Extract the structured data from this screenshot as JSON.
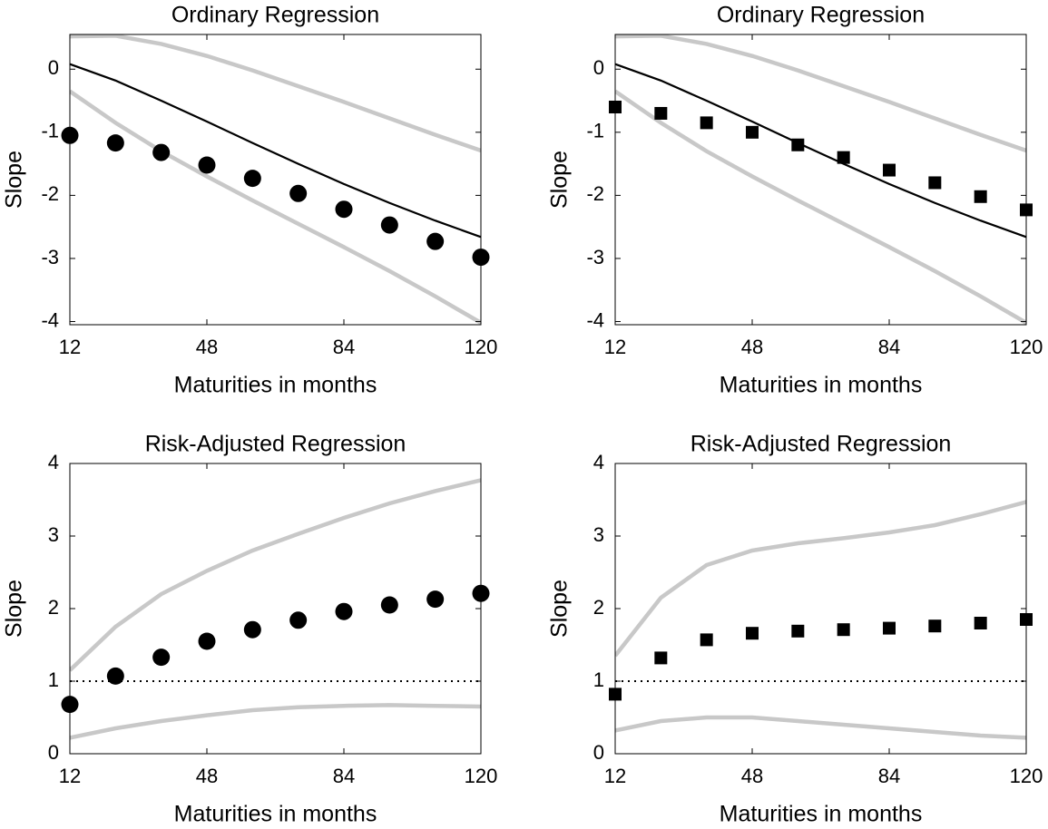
{
  "chart_data": [
    {
      "type": "line",
      "title": "Ordinary Regression",
      "xlabel": "Maturities in months",
      "ylabel": "Slope",
      "x": [
        12,
        24,
        36,
        48,
        60,
        72,
        84,
        96,
        108,
        120
      ],
      "xlim": [
        12,
        120
      ],
      "xticks": [
        12,
        48,
        84,
        120
      ],
      "ylim": [
        -4.05,
        0.55
      ],
      "yticks": [
        0,
        -1,
        -2,
        -3,
        -4
      ],
      "series": [
        {
          "color": "#c8c8c8",
          "style": "line",
          "values": [
            0.52,
            0.53,
            0.4,
            0.21,
            -0.02,
            -0.27,
            -0.52,
            -0.78,
            -1.04,
            -1.29
          ]
        },
        {
          "color": "#c8c8c8",
          "style": "line",
          "values": [
            -0.35,
            -0.85,
            -1.3,
            -1.7,
            -2.08,
            -2.45,
            -2.82,
            -3.2,
            -3.6,
            -4.02
          ]
        },
        {
          "color": "#000000",
          "style": "line",
          "values": [
            0.08,
            -0.18,
            -0.5,
            -0.83,
            -1.17,
            -1.5,
            -1.82,
            -2.12,
            -2.4,
            -2.66
          ]
        },
        {
          "color": "#000000",
          "style": "circle",
          "values": [
            -1.05,
            -1.17,
            -1.32,
            -1.52,
            -1.73,
            -1.97,
            -2.22,
            -2.47,
            -2.73,
            -2.98
          ]
        }
      ]
    },
    {
      "type": "line",
      "title": "Ordinary Regression",
      "xlabel": "Maturities in months",
      "ylabel": "Slope",
      "x": [
        12,
        24,
        36,
        48,
        60,
        72,
        84,
        96,
        108,
        120
      ],
      "xlim": [
        12,
        120
      ],
      "xticks": [
        12,
        48,
        84,
        120
      ],
      "ylim": [
        -4.05,
        0.55
      ],
      "yticks": [
        0,
        -1,
        -2,
        -3,
        -4
      ],
      "series": [
        {
          "color": "#c8c8c8",
          "style": "line",
          "values": [
            0.52,
            0.53,
            0.4,
            0.21,
            -0.02,
            -0.27,
            -0.52,
            -0.78,
            -1.04,
            -1.29
          ]
        },
        {
          "color": "#c8c8c8",
          "style": "line",
          "values": [
            -0.35,
            -0.85,
            -1.3,
            -1.7,
            -2.08,
            -2.45,
            -2.82,
            -3.2,
            -3.6,
            -4.02
          ]
        },
        {
          "color": "#000000",
          "style": "line",
          "values": [
            0.08,
            -0.18,
            -0.5,
            -0.83,
            -1.17,
            -1.5,
            -1.82,
            -2.12,
            -2.4,
            -2.66
          ]
        },
        {
          "color": "#000000",
          "style": "square",
          "values": [
            -0.6,
            -0.7,
            -0.85,
            -1.0,
            -1.2,
            -1.4,
            -1.6,
            -1.8,
            -2.02,
            -2.23
          ]
        }
      ]
    },
    {
      "type": "line",
      "title": "Risk-Adjusted Regression",
      "xlabel": "Maturities in months",
      "ylabel": "Slope",
      "x": [
        12,
        24,
        36,
        48,
        60,
        72,
        84,
        96,
        108,
        120
      ],
      "xlim": [
        12,
        120
      ],
      "xticks": [
        12,
        48,
        84,
        120
      ],
      "ylim": [
        0,
        4
      ],
      "yticks": [
        0,
        1,
        2,
        3,
        4
      ],
      "hline": 1,
      "hline_style": "dotted",
      "series": [
        {
          "color": "#c8c8c8",
          "style": "line",
          "values": [
            1.15,
            1.75,
            2.2,
            2.52,
            2.8,
            3.03,
            3.25,
            3.45,
            3.62,
            3.77
          ]
        },
        {
          "color": "#c8c8c8",
          "style": "line",
          "values": [
            0.22,
            0.35,
            0.45,
            0.53,
            0.6,
            0.64,
            0.66,
            0.67,
            0.66,
            0.65
          ]
        },
        {
          "color": "#000000",
          "style": "circle",
          "values": [
            0.68,
            1.07,
            1.33,
            1.55,
            1.71,
            1.84,
            1.96,
            2.05,
            2.13,
            2.21
          ]
        }
      ]
    },
    {
      "type": "line",
      "title": "Risk-Adjusted Regression",
      "xlabel": "Maturities in months",
      "ylabel": "Slope",
      "x": [
        12,
        24,
        36,
        48,
        60,
        72,
        84,
        96,
        108,
        120
      ],
      "xlim": [
        12,
        120
      ],
      "xticks": [
        12,
        48,
        84,
        120
      ],
      "ylim": [
        0,
        4
      ],
      "yticks": [
        0,
        1,
        2,
        3,
        4
      ],
      "hline": 1,
      "hline_style": "dotted",
      "series": [
        {
          "color": "#c8c8c8",
          "style": "line",
          "values": [
            1.35,
            2.15,
            2.6,
            2.8,
            2.9,
            2.97,
            3.05,
            3.15,
            3.3,
            3.47
          ]
        },
        {
          "color": "#c8c8c8",
          "style": "line",
          "values": [
            0.32,
            0.45,
            0.5,
            0.5,
            0.45,
            0.4,
            0.35,
            0.3,
            0.25,
            0.22
          ]
        },
        {
          "color": "#000000",
          "style": "square",
          "values": [
            0.82,
            1.32,
            1.57,
            1.66,
            1.69,
            1.71,
            1.73,
            1.76,
            1.8,
            1.85
          ]
        }
      ]
    }
  ]
}
